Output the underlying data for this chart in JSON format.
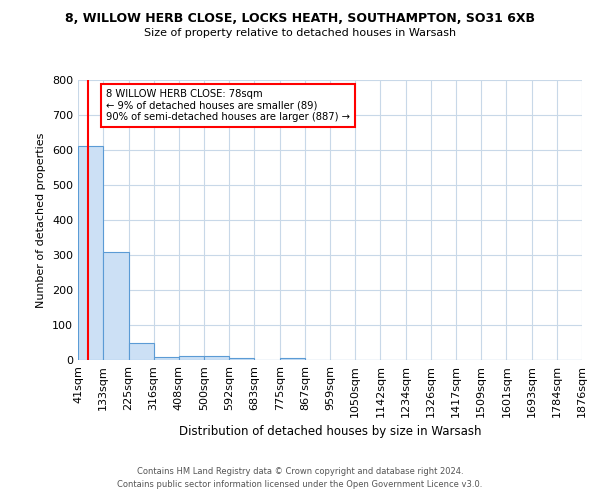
{
  "title_line1": "8, WILLOW HERB CLOSE, LOCKS HEATH, SOUTHAMPTON, SO31 6XB",
  "title_line2": "Size of property relative to detached houses in Warsash",
  "xlabel": "Distribution of detached houses by size in Warsash",
  "ylabel": "Number of detached properties",
  "bin_labels": [
    "41sqm",
    "133sqm",
    "225sqm",
    "316sqm",
    "408sqm",
    "500sqm",
    "592sqm",
    "683sqm",
    "775sqm",
    "867sqm",
    "959sqm",
    "1050sqm",
    "1142sqm",
    "1234sqm",
    "1326sqm",
    "1417sqm",
    "1509sqm",
    "1601sqm",
    "1693sqm",
    "1784sqm",
    "1876sqm"
  ],
  "bar_heights": [
    610,
    310,
    50,
    10,
    12,
    12,
    5,
    0,
    7,
    0,
    0,
    0,
    0,
    0,
    0,
    0,
    0,
    0,
    0,
    0
  ],
  "bar_color": "#cce0f5",
  "bar_edge_color": "#5b9bd5",
  "red_line_x": 78,
  "bin_edges_numeric": [
    41,
    133,
    225,
    316,
    408,
    500,
    592,
    683,
    775,
    867,
    959,
    1050,
    1142,
    1234,
    1326,
    1417,
    1509,
    1601,
    1693,
    1784,
    1876
  ],
  "annotation_text": "8 WILLOW HERB CLOSE: 78sqm\n← 9% of detached houses are smaller (89)\n90% of semi-detached houses are larger (887) →",
  "footer_line1": "Contains HM Land Registry data © Crown copyright and database right 2024.",
  "footer_line2": "Contains public sector information licensed under the Open Government Licence v3.0.",
  "ylim": [
    0,
    800
  ],
  "yticks": [
    0,
    100,
    200,
    300,
    400,
    500,
    600,
    700,
    800
  ],
  "background_color": "#ffffff",
  "grid_color": "#c8d8e8"
}
